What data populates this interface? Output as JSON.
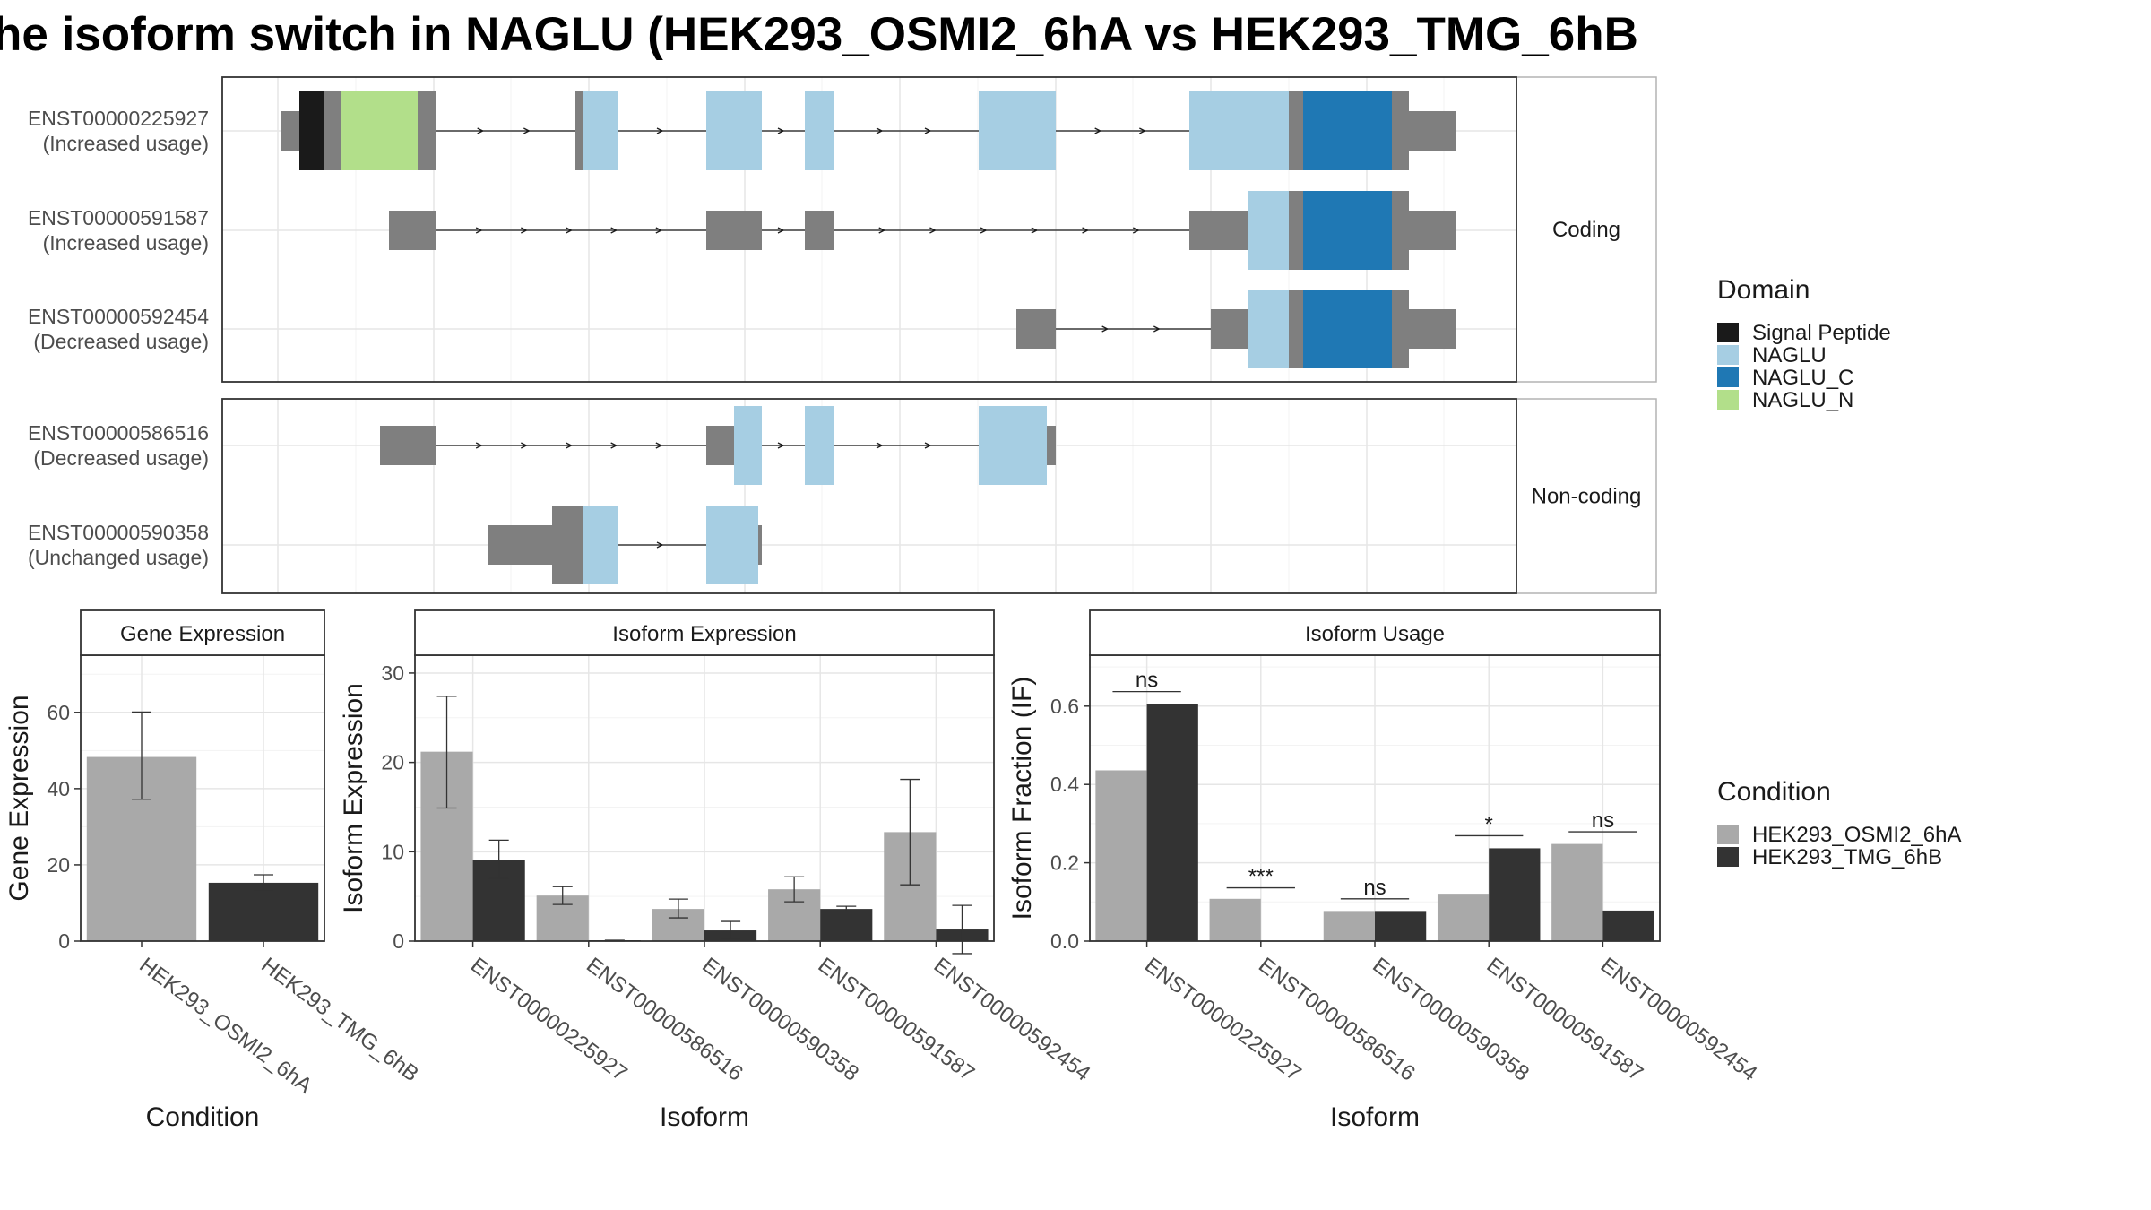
{
  "title": "he isoform switch in NAGLU (HEK293_OSMI2_6hA vs HEK293_TMG_6hB",
  "colors": {
    "signal_peptide": "#1a1a1a",
    "naglu": "#a6cee3",
    "naglu_c": "#1f78b4",
    "naglu_n": "#b2df8a",
    "utr": "#7f7f7f",
    "cond_a": "#a9a9a9",
    "cond_b": "#333333"
  },
  "structure": {
    "facets": [
      {
        "label": "Coding",
        "rows": [
          {
            "name": "ENST00000225927",
            "usage": "(Increased usage)"
          },
          {
            "name": "ENST00000591587",
            "usage": "(Increased usage)"
          },
          {
            "name": "ENST00000592454",
            "usage": "(Decreased usage)"
          }
        ]
      },
      {
        "label": "Non-coding",
        "rows": [
          {
            "name": "ENST00000586516",
            "usage": "(Decreased usage)"
          },
          {
            "name": "ENST00000590358",
            "usage": "(Unchanged usage)"
          }
        ]
      }
    ]
  },
  "legend_domain": {
    "title": "Domain",
    "items": [
      {
        "label": "Signal Peptide",
        "color": "#1a1a1a"
      },
      {
        "label": "NAGLU",
        "color": "#a6cee3"
      },
      {
        "label": "NAGLU_C",
        "color": "#1f78b4"
      },
      {
        "label": "NAGLU_N",
        "color": "#b2df8a"
      }
    ]
  },
  "legend_condition": {
    "title": "Condition",
    "items": [
      {
        "label": "HEK293_OSMI2_6hA",
        "color": "#a9a9a9"
      },
      {
        "label": "HEK293_TMG_6hB",
        "color": "#333333"
      }
    ]
  },
  "chart_data": [
    {
      "type": "bar",
      "title": "Gene Expression",
      "xlabel": "Condition",
      "ylabel": "Gene Expression",
      "ylim": [
        0,
        75
      ],
      "yticks": [
        0,
        20,
        40,
        60
      ],
      "categories": [
        "HEK293_OSMI2_6hA",
        "HEK293_TMG_6hB"
      ],
      "values": [
        48.3,
        15.3
      ],
      "errors": [
        [
          37.2,
          60.1
        ],
        [
          13.2,
          17.4
        ]
      ]
    },
    {
      "type": "bar",
      "title": "Isoform Expression",
      "xlabel": "Isoform",
      "ylabel": "Isoform Expression",
      "ylim": [
        0,
        32
      ],
      "yticks": [
        0,
        10,
        20,
        30
      ],
      "categories": [
        "ENST00000225927",
        "ENST00000586516",
        "ENST00000590358",
        "ENST00000591587",
        "ENST00000592454"
      ],
      "series": [
        {
          "name": "HEK293_OSMI2_6hA",
          "values": [
            21.2,
            5.1,
            3.6,
            5.8,
            12.2
          ],
          "errors": [
            [
              14.9,
              27.4
            ],
            [
              4.1,
              6.1
            ],
            [
              2.6,
              4.7
            ],
            [
              4.4,
              7.2
            ],
            [
              6.3,
              18.1
            ]
          ]
        },
        {
          "name": "HEK293_TMG_6hB",
          "values": [
            9.1,
            0.1,
            1.2,
            3.6,
            1.3
          ],
          "errors": [
            [
              7.0,
              11.3
            ],
            [
              0.0,
              0.1
            ],
            [
              0.3,
              2.2
            ],
            [
              3.3,
              3.9
            ],
            [
              -1.4,
              4.0
            ]
          ]
        }
      ]
    },
    {
      "type": "bar",
      "title": "Isoform Usage",
      "xlabel": "Isoform",
      "ylabel": "Isoform Fraction (IF)",
      "ylim": [
        0,
        0.73
      ],
      "yticks": [
        0.0,
        0.2,
        0.4,
        0.6
      ],
      "categories": [
        "ENST00000225927",
        "ENST00000586516",
        "ENST00000590358",
        "ENST00000591587",
        "ENST00000592454"
      ],
      "series": [
        {
          "name": "HEK293_OSMI2_6hA",
          "values": [
            0.436,
            0.108,
            0.077,
            0.121,
            0.248
          ]
        },
        {
          "name": "HEK293_TMG_6hB",
          "values": [
            0.605,
            0.0,
            0.077,
            0.237,
            0.078
          ]
        }
      ],
      "significance": [
        "ns",
        "***",
        "ns",
        "*",
        "ns"
      ],
      "significance_y": [
        0.637,
        0.136,
        0.108,
        0.269,
        0.279
      ]
    }
  ]
}
